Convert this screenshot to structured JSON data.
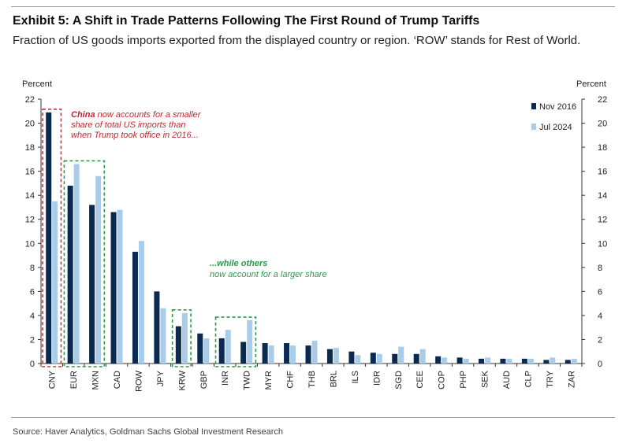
{
  "header": {
    "title": "Exhibit 5: A Shift in Trade Patterns Following The First Round of Trump Tariffs",
    "subtitle": "Fraction of US goods imports exported from the displayed country or region. ‘ROW’ stands for Rest of World."
  },
  "source": "Source: Haver Analytics, Goldman Sachs Global Investment Research",
  "chart_data": {
    "type": "bar",
    "categories": [
      "CNY",
      "EUR",
      "MXN",
      "CAD",
      "ROW",
      "JPY",
      "KRW",
      "GBP",
      "INR",
      "TWD",
      "MYR",
      "CHF",
      "THB",
      "BRL",
      "ILS",
      "IDR",
      "SGD",
      "CEE",
      "COP",
      "PHP",
      "SEK",
      "AUD",
      "CLP",
      "TRY",
      "ZAR"
    ],
    "series": [
      {
        "name": "Nov 2016",
        "color": "#0b2a4f",
        "values": [
          20.9,
          14.8,
          13.2,
          12.6,
          9.3,
          6.0,
          3.1,
          2.5,
          2.1,
          1.8,
          1.7,
          1.7,
          1.5,
          1.2,
          1.0,
          0.9,
          0.8,
          0.8,
          0.6,
          0.5,
          0.4,
          0.4,
          0.4,
          0.3,
          0.3
        ]
      },
      {
        "name": "Jul 2024",
        "color": "#a9cde9",
        "values": [
          13.5,
          16.6,
          15.6,
          12.8,
          10.2,
          4.6,
          4.2,
          2.1,
          2.8,
          3.6,
          1.5,
          1.5,
          1.9,
          1.3,
          0.7,
          0.8,
          1.4,
          1.2,
          0.5,
          0.4,
          0.5,
          0.4,
          0.4,
          0.5,
          0.4
        ]
      }
    ],
    "ylabel_left": "Percent",
    "ylabel_right": "Percent",
    "ylim": [
      0,
      22
    ],
    "yticks": [
      0,
      2,
      4,
      6,
      8,
      10,
      12,
      14,
      16,
      18,
      20,
      22
    ],
    "legend_position": "top-right",
    "annotations": {
      "china_bold": "China",
      "china_line1_rest": " now accounts for a smaller",
      "china_line2": "share of total US imports than",
      "china_line3": "when Trump took office in 2016...",
      "others_line1": "...while others",
      "others_line2": "now account for a larger share"
    },
    "highlight_colors": {
      "red": "#d0343a",
      "green": "#2b9a48"
    },
    "highlights": [
      {
        "category": "CNY",
        "color": "red"
      },
      {
        "category": "EUR",
        "color": "green",
        "span_to": "MXN"
      },
      {
        "category": "KRW",
        "color": "green"
      },
      {
        "category": "INR",
        "color": "green",
        "span_to": "TWD"
      }
    ]
  }
}
